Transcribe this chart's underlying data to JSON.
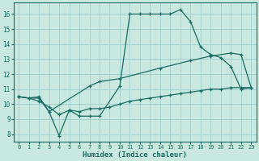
{
  "xlabel": "Humidex (Indice chaleur)",
  "bg_color": "#c8e8e0",
  "grid_color": "#9ecfcc",
  "line_color": "#1a6b60",
  "xlim": [
    -0.5,
    23.5
  ],
  "ylim": [
    7.5,
    16.75
  ],
  "yticks": [
    8,
    9,
    10,
    11,
    12,
    13,
    14,
    15,
    16
  ],
  "xticks": [
    0,
    1,
    2,
    3,
    4,
    5,
    6,
    7,
    8,
    9,
    10,
    11,
    12,
    13,
    14,
    15,
    16,
    17,
    18,
    19,
    20,
    21,
    22,
    23
  ],
  "line1_x": [
    0,
    1,
    2,
    3,
    4,
    5,
    6,
    7,
    8,
    10,
    11,
    12,
    13,
    14,
    15,
    16,
    17,
    18,
    19,
    20,
    21,
    22,
    23
  ],
  "line1_y": [
    10.5,
    10.4,
    10.4,
    9.5,
    7.9,
    9.6,
    9.2,
    9.2,
    9.2,
    11.2,
    16.0,
    16.0,
    16.0,
    16.0,
    16.0,
    16.3,
    15.5,
    13.8,
    13.3,
    13.1,
    12.5,
    11.0,
    11.1
  ],
  "line2_x": [
    0,
    1,
    2,
    3,
    7,
    8,
    10,
    14,
    17,
    19,
    21,
    22,
    23
  ],
  "line2_y": [
    10.5,
    10.4,
    10.5,
    9.5,
    11.2,
    11.5,
    11.7,
    12.4,
    12.9,
    13.2,
    13.4,
    13.3,
    11.1
  ],
  "line3_x": [
    0,
    1,
    2,
    3,
    4,
    5,
    6,
    7,
    8,
    9,
    10,
    11,
    12,
    13,
    14,
    15,
    16,
    17,
    18,
    19,
    20,
    21,
    22,
    23
  ],
  "line3_y": [
    10.5,
    10.4,
    10.2,
    9.8,
    9.3,
    9.6,
    9.5,
    9.7,
    9.7,
    9.8,
    10.0,
    10.2,
    10.3,
    10.4,
    10.5,
    10.6,
    10.7,
    10.8,
    10.9,
    11.0,
    11.0,
    11.1,
    11.1,
    11.1
  ]
}
